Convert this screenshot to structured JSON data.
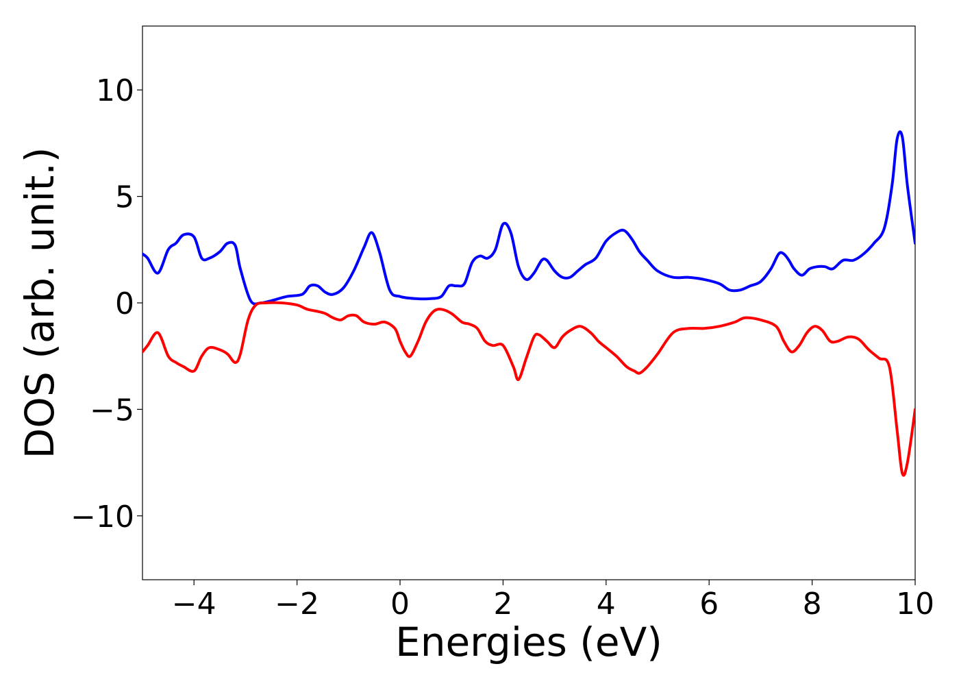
{
  "chart_data": {
    "type": "line",
    "title": "",
    "xlabel": "Energies (eV)",
    "ylabel": "DOS (arb. unit.)",
    "xlim": [
      -5,
      10
    ],
    "ylim": [
      -13,
      13
    ],
    "xticks": [
      -4,
      -2,
      0,
      2,
      4,
      6,
      8,
      10
    ],
    "xtick_labels": [
      "−4",
      "−2",
      "0",
      "2",
      "4",
      "6",
      "8",
      "10"
    ],
    "yticks": [
      -10,
      -5,
      0,
      5,
      10
    ],
    "ytick_labels": [
      "−10",
      "−5",
      "0",
      "5",
      "10"
    ],
    "grid": false,
    "series": [
      {
        "color": "#0000ff",
        "x": [
          -5.0,
          -4.9,
          -4.7,
          -4.5,
          -4.35,
          -4.2,
          -4.0,
          -3.85,
          -3.7,
          -3.5,
          -3.35,
          -3.2,
          -3.1,
          -2.9,
          -2.7,
          -2.5,
          -2.2,
          -1.9,
          -1.75,
          -1.6,
          -1.45,
          -1.3,
          -1.1,
          -0.9,
          -0.7,
          -0.55,
          -0.4,
          -0.2,
          0.0,
          0.3,
          0.6,
          0.8,
          0.95,
          1.1,
          1.25,
          1.4,
          1.55,
          1.7,
          1.85,
          2.0,
          2.15,
          2.3,
          2.45,
          2.6,
          2.75,
          2.85,
          3.0,
          3.15,
          3.3,
          3.45,
          3.6,
          3.8,
          4.0,
          4.2,
          4.35,
          4.5,
          4.65,
          4.8,
          5.0,
          5.3,
          5.6,
          5.9,
          6.2,
          6.4,
          6.6,
          6.8,
          7.0,
          7.2,
          7.35,
          7.45,
          7.55,
          7.65,
          7.8,
          7.95,
          8.1,
          8.25,
          8.4,
          8.6,
          8.8,
          9.0,
          9.2,
          9.4,
          9.55,
          9.65,
          9.75,
          9.85,
          10.0
        ],
        "y": [
          2.3,
          2.1,
          1.4,
          2.5,
          2.8,
          3.2,
          3.1,
          2.1,
          2.1,
          2.4,
          2.8,
          2.7,
          1.6,
          0.1,
          0.0,
          0.1,
          0.3,
          0.4,
          0.8,
          0.8,
          0.5,
          0.4,
          0.7,
          1.5,
          2.6,
          3.3,
          2.4,
          0.6,
          0.3,
          0.2,
          0.2,
          0.3,
          0.8,
          0.8,
          0.9,
          1.9,
          2.2,
          2.1,
          2.5,
          3.7,
          3.3,
          1.7,
          1.1,
          1.4,
          2.0,
          2.0,
          1.5,
          1.2,
          1.2,
          1.5,
          1.8,
          2.1,
          2.9,
          3.3,
          3.4,
          3.0,
          2.4,
          2.0,
          1.5,
          1.2,
          1.2,
          1.1,
          0.9,
          0.6,
          0.6,
          0.8,
          1.0,
          1.6,
          2.3,
          2.3,
          2.0,
          1.6,
          1.3,
          1.6,
          1.7,
          1.7,
          1.6,
          2.0,
          2.0,
          2.3,
          2.8,
          3.5,
          5.5,
          7.7,
          7.8,
          5.5,
          2.8
        ]
      },
      {
        "color": "#ff0000",
        "x": [
          -5.0,
          -4.9,
          -4.7,
          -4.5,
          -4.35,
          -4.2,
          -4.0,
          -3.85,
          -3.7,
          -3.5,
          -3.35,
          -3.2,
          -3.1,
          -2.95,
          -2.8,
          -2.6,
          -2.3,
          -2.0,
          -1.8,
          -1.6,
          -1.45,
          -1.3,
          -1.15,
          -1.0,
          -0.85,
          -0.7,
          -0.5,
          -0.3,
          -0.1,
          0.0,
          0.1,
          0.2,
          0.35,
          0.5,
          0.65,
          0.8,
          1.0,
          1.2,
          1.35,
          1.5,
          1.65,
          1.8,
          2.0,
          2.2,
          2.3,
          2.45,
          2.6,
          2.7,
          2.85,
          3.0,
          3.15,
          3.3,
          3.5,
          3.7,
          3.85,
          4.0,
          4.2,
          4.4,
          4.55,
          4.65,
          4.8,
          5.0,
          5.3,
          5.6,
          5.9,
          6.2,
          6.5,
          6.7,
          7.0,
          7.3,
          7.45,
          7.6,
          7.75,
          7.9,
          8.05,
          8.2,
          8.35,
          8.5,
          8.7,
          8.9,
          9.1,
          9.3,
          9.5,
          9.65,
          9.75,
          9.85,
          10.0
        ],
        "y": [
          -2.3,
          -2.0,
          -1.4,
          -2.5,
          -2.8,
          -3.0,
          -3.2,
          -2.5,
          -2.1,
          -2.2,
          -2.4,
          -2.8,
          -2.4,
          -0.8,
          -0.1,
          0.0,
          0.0,
          -0.1,
          -0.3,
          -0.4,
          -0.5,
          -0.7,
          -0.8,
          -0.6,
          -0.6,
          -0.9,
          -1.0,
          -0.9,
          -1.2,
          -1.8,
          -2.3,
          -2.5,
          -1.8,
          -0.9,
          -0.4,
          -0.3,
          -0.5,
          -0.9,
          -1.0,
          -1.2,
          -1.8,
          -2.0,
          -2.0,
          -3.0,
          -3.6,
          -2.6,
          -1.6,
          -1.5,
          -1.8,
          -2.1,
          -1.6,
          -1.3,
          -1.1,
          -1.4,
          -1.8,
          -2.1,
          -2.5,
          -3.0,
          -3.2,
          -3.3,
          -3.0,
          -2.4,
          -1.4,
          -1.2,
          -1.2,
          -1.1,
          -0.9,
          -0.7,
          -0.8,
          -1.1,
          -1.8,
          -2.3,
          -2.0,
          -1.4,
          -1.1,
          -1.3,
          -1.8,
          -1.8,
          -1.6,
          -1.7,
          -2.2,
          -2.6,
          -3.0,
          -6.0,
          -8.0,
          -7.5,
          -5.0
        ]
      }
    ]
  }
}
